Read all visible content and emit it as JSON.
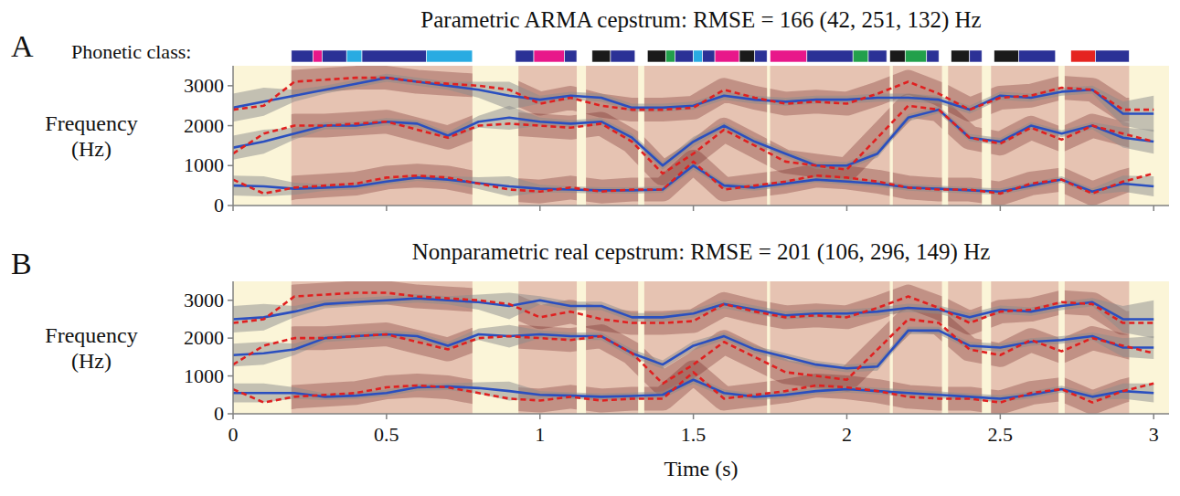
{
  "chart_data": [
    {
      "type": "line",
      "panel": "A",
      "title": "Parametric ARMA cepstrum: RMSE = 166 (42, 251, 132) Hz",
      "y_label": "Frequency (Hz)",
      "tick_labels": "y",
      "xlim": [
        0,
        3.05
      ],
      "xticks": [
        0,
        0.5,
        1,
        1.5,
        2,
        2.5,
        3
      ],
      "ylim": [
        0,
        3500
      ],
      "yticks": [
        0,
        1000,
        2000,
        3000
      ],
      "phonetic_class": {
        "label": "Phonetic class:",
        "segments": [
          {
            "start": 0.19,
            "end": 0.26,
            "color": "#2b3196"
          },
          {
            "start": 0.26,
            "end": 0.29,
            "color": "#e8178a"
          },
          {
            "start": 0.29,
            "end": 0.37,
            "color": "#2b3196"
          },
          {
            "start": 0.37,
            "end": 0.42,
            "color": "#29abe2"
          },
          {
            "start": 0.42,
            "end": 0.63,
            "color": "#2b3196"
          },
          {
            "start": 0.63,
            "end": 0.78,
            "color": "#29abe2"
          },
          {
            "start": 0.92,
            "end": 0.98,
            "color": "#2b3196"
          },
          {
            "start": 0.98,
            "end": 1.08,
            "color": "#e8178a"
          },
          {
            "start": 1.08,
            "end": 1.12,
            "color": "#2b3196"
          },
          {
            "start": 1.17,
            "end": 1.23,
            "color": "#1a1a1a"
          },
          {
            "start": 1.23,
            "end": 1.31,
            "color": "#2b3196"
          },
          {
            "start": 1.35,
            "end": 1.41,
            "color": "#1a1a1a"
          },
          {
            "start": 1.41,
            "end": 1.44,
            "color": "#22a04b"
          },
          {
            "start": 1.44,
            "end": 1.5,
            "color": "#2b3196"
          },
          {
            "start": 1.5,
            "end": 1.53,
            "color": "#29abe2"
          },
          {
            "start": 1.53,
            "end": 1.57,
            "color": "#2b3196"
          },
          {
            "start": 1.57,
            "end": 1.65,
            "color": "#e8178a"
          },
          {
            "start": 1.65,
            "end": 1.7,
            "color": "#1a1a1a"
          },
          {
            "start": 1.7,
            "end": 1.74,
            "color": "#2b3196"
          },
          {
            "start": 1.75,
            "end": 1.87,
            "color": "#e8178a"
          },
          {
            "start": 1.87,
            "end": 2.02,
            "color": "#2b3196"
          },
          {
            "start": 2.02,
            "end": 2.07,
            "color": "#22a04b"
          },
          {
            "start": 2.07,
            "end": 2.13,
            "color": "#2b3196"
          },
          {
            "start": 2.14,
            "end": 2.19,
            "color": "#1a1a1a"
          },
          {
            "start": 2.19,
            "end": 2.26,
            "color": "#22a04b"
          },
          {
            "start": 2.26,
            "end": 2.3,
            "color": "#2b3196"
          },
          {
            "start": 2.34,
            "end": 2.4,
            "color": "#1a1a1a"
          },
          {
            "start": 2.4,
            "end": 2.44,
            "color": "#2b3196"
          },
          {
            "start": 2.48,
            "end": 2.56,
            "color": "#1a1a1a"
          },
          {
            "start": 2.56,
            "end": 2.68,
            "color": "#2b3196"
          },
          {
            "start": 2.73,
            "end": 2.81,
            "color": "#e52420"
          },
          {
            "start": 2.81,
            "end": 2.92,
            "color": "#2b3196"
          }
        ]
      },
      "voiced_segments": [
        [
          0.19,
          0.78
        ],
        [
          0.93,
          1.12
        ],
        [
          1.15,
          1.32
        ],
        [
          1.34,
          1.74
        ],
        [
          1.75,
          2.14
        ],
        [
          2.15,
          2.31
        ],
        [
          2.33,
          2.44
        ],
        [
          2.47,
          2.69
        ],
        [
          2.71,
          2.92
        ]
      ],
      "x": [
        0,
        0.1,
        0.2,
        0.3,
        0.4,
        0.5,
        0.6,
        0.7,
        0.8,
        0.9,
        1,
        1.1,
        1.2,
        1.3,
        1.4,
        1.5,
        1.6,
        1.7,
        1.8,
        1.9,
        2,
        2.1,
        2.2,
        2.3,
        2.4,
        2.5,
        2.6,
        2.7,
        2.8,
        2.9,
        3
      ],
      "series": [
        {
          "color": "#2a4fbf",
          "line_style": "solid",
          "values": [
            500,
            480,
            420,
            450,
            480,
            600,
            700,
            650,
            560,
            480,
            420,
            400,
            380,
            380,
            400,
            1000,
            500,
            450,
            550,
            650,
            600,
            550,
            450,
            420,
            380,
            350,
            500,
            650,
            350,
            550,
            480
          ],
          "uncertainty": [
            250,
            250,
            150,
            80,
            80,
            80,
            80,
            80,
            150,
            250,
            100,
            80,
            80,
            80,
            80,
            100,
            80,
            80,
            80,
            80,
            80,
            80,
            80,
            80,
            80,
            80,
            80,
            80,
            80,
            200,
            250
          ]
        },
        {
          "color": "#2a4fbf",
          "line_style": "solid",
          "values": [
            1450,
            1600,
            1800,
            2000,
            2000,
            2100,
            2050,
            1750,
            2100,
            2200,
            2100,
            2050,
            2100,
            1700,
            1000,
            1600,
            2000,
            1600,
            1300,
            1000,
            1000,
            1300,
            2200,
            2400,
            1700,
            1600,
            2000,
            1800,
            2000,
            1700,
            1600
          ],
          "uncertainty": [
            300,
            300,
            150,
            90,
            90,
            90,
            90,
            90,
            150,
            300,
            100,
            90,
            90,
            100,
            100,
            120,
            90,
            90,
            90,
            90,
            90,
            100,
            90,
            90,
            90,
            90,
            90,
            90,
            90,
            250,
            300
          ]
        },
        {
          "color": "#2a4fbf",
          "line_style": "solid",
          "values": [
            2450,
            2600,
            2750,
            2900,
            3050,
            3200,
            3100,
            3000,
            2900,
            2750,
            2650,
            2750,
            2700,
            2450,
            2450,
            2500,
            2750,
            2650,
            2600,
            2650,
            2650,
            2700,
            2700,
            2650,
            2400,
            2750,
            2700,
            2850,
            2900,
            2300,
            2300
          ],
          "uncertainty": [
            350,
            350,
            150,
            100,
            100,
            100,
            100,
            100,
            200,
            350,
            100,
            100,
            100,
            100,
            100,
            100,
            100,
            100,
            100,
            100,
            100,
            100,
            100,
            100,
            100,
            100,
            100,
            100,
            100,
            300,
            450
          ]
        },
        {
          "color": "#e02020",
          "line_style": "dashed",
          "values": [
            650,
            300,
            450,
            500,
            550,
            700,
            750,
            700,
            550,
            400,
            350,
            450,
            350,
            400,
            400,
            1100,
            400,
            500,
            600,
            750,
            700,
            600,
            450,
            400,
            400,
            300,
            550,
            650,
            300,
            600,
            800
          ]
        },
        {
          "color": "#e02020",
          "line_style": "dashed",
          "values": [
            1300,
            1800,
            2000,
            2000,
            2050,
            2100,
            1900,
            1700,
            2000,
            2050,
            2000,
            1950,
            2050,
            1600,
            800,
            1300,
            1900,
            1500,
            1100,
            1000,
            900,
            1700,
            2500,
            2400,
            1700,
            1550,
            1950,
            1650,
            2000,
            1800,
            1600
          ]
        },
        {
          "color": "#e02020",
          "line_style": "dashed",
          "values": [
            2400,
            2500,
            3100,
            3150,
            3200,
            3200,
            3100,
            3050,
            3000,
            2900,
            2550,
            2700,
            2500,
            2400,
            2400,
            2450,
            2900,
            2700,
            2550,
            2600,
            2550,
            2800,
            3100,
            2800,
            2400,
            2700,
            2750,
            2950,
            2900,
            2400,
            2400
          ]
        }
      ]
    },
    {
      "type": "line",
      "panel": "B",
      "title": "Nonparametric real cepstrum: RMSE = 201 (106, 296, 149) Hz",
      "y_label": "Frequency (Hz)",
      "x_label": "Time (s)",
      "xlim": [
        0,
        3.05
      ],
      "xticks": [
        0,
        0.5,
        1,
        1.5,
        2,
        2.5,
        3
      ],
      "ylim": [
        0,
        3500
      ],
      "yticks": [
        0,
        1000,
        2000,
        3000
      ],
      "voiced_segments": [
        [
          0.19,
          0.78
        ],
        [
          0.93,
          1.12
        ],
        [
          1.15,
          1.32
        ],
        [
          1.34,
          1.74
        ],
        [
          1.75,
          2.14
        ],
        [
          2.15,
          2.31
        ],
        [
          2.33,
          2.44
        ],
        [
          2.47,
          2.69
        ],
        [
          2.71,
          2.92
        ]
      ],
      "x": [
        0,
        0.1,
        0.2,
        0.3,
        0.4,
        0.5,
        0.6,
        0.7,
        0.8,
        0.9,
        1,
        1.1,
        1.2,
        1.3,
        1.4,
        1.5,
        1.6,
        1.7,
        1.8,
        1.9,
        2,
        2.1,
        2.2,
        2.3,
        2.4,
        2.5,
        2.6,
        2.7,
        2.8,
        2.9,
        3
      ],
      "series": [
        {
          "color": "#2a4fbf",
          "line_style": "solid",
          "values": [
            550,
            550,
            550,
            450,
            480,
            550,
            700,
            720,
            680,
            600,
            500,
            480,
            450,
            470,
            500,
            900,
            550,
            450,
            500,
            600,
            650,
            600,
            550,
            500,
            450,
            400,
            500,
            650,
            450,
            600,
            550
          ],
          "uncertainty": [
            250,
            250,
            150,
            90,
            90,
            90,
            90,
            90,
            150,
            250,
            100,
            90,
            90,
            90,
            90,
            110,
            90,
            90,
            90,
            90,
            90,
            90,
            90,
            90,
            90,
            90,
            90,
            90,
            90,
            200,
            250
          ]
        },
        {
          "color": "#2a4fbf",
          "line_style": "solid",
          "values": [
            1550,
            1600,
            1700,
            2000,
            2050,
            2100,
            2050,
            1800,
            2100,
            2050,
            2100,
            2050,
            2050,
            1600,
            1300,
            1800,
            2050,
            1700,
            1500,
            1300,
            1200,
            1250,
            2200,
            2200,
            1800,
            1750,
            1900,
            1950,
            2050,
            1750,
            1750
          ],
          "uncertainty": [
            300,
            300,
            150,
            100,
            100,
            100,
            100,
            100,
            150,
            300,
            100,
            100,
            100,
            110,
            110,
            120,
            100,
            100,
            100,
            100,
            100,
            110,
            100,
            100,
            100,
            100,
            100,
            100,
            100,
            250,
            300
          ]
        },
        {
          "color": "#2a4fbf",
          "line_style": "solid",
          "values": [
            2500,
            2550,
            2700,
            2900,
            2950,
            3000,
            3050,
            3000,
            2950,
            2850,
            3000,
            2850,
            2850,
            2550,
            2550,
            2650,
            2900,
            2750,
            2600,
            2650,
            2650,
            2700,
            2800,
            2750,
            2550,
            2750,
            2700,
            2850,
            2950,
            2500,
            2500
          ],
          "uncertainty": [
            350,
            350,
            150,
            110,
            110,
            110,
            110,
            110,
            200,
            350,
            110,
            110,
            110,
            110,
            110,
            110,
            110,
            110,
            110,
            110,
            110,
            110,
            110,
            110,
            110,
            110,
            110,
            110,
            110,
            350,
            500
          ]
        },
        {
          "color": "#e02020",
          "line_style": "dashed",
          "values": [
            650,
            300,
            450,
            500,
            550,
            700,
            750,
            700,
            550,
            400,
            350,
            450,
            350,
            400,
            400,
            1100,
            400,
            500,
            600,
            750,
            700,
            600,
            450,
            400,
            400,
            300,
            550,
            650,
            300,
            600,
            800
          ]
        },
        {
          "color": "#e02020",
          "line_style": "dashed",
          "values": [
            1300,
            1800,
            2000,
            2000,
            2050,
            2100,
            1900,
            1700,
            2000,
            2050,
            2000,
            1950,
            2050,
            1600,
            800,
            1300,
            1900,
            1500,
            1100,
            1000,
            900,
            1700,
            2500,
            2400,
            1700,
            1550,
            1950,
            1650,
            2000,
            1800,
            1600
          ]
        },
        {
          "color": "#e02020",
          "line_style": "dashed",
          "values": [
            2400,
            2500,
            3100,
            3150,
            3200,
            3200,
            3100,
            3050,
            3000,
            2900,
            2550,
            2700,
            2500,
            2400,
            2400,
            2450,
            2900,
            2700,
            2550,
            2600,
            2550,
            2800,
            3100,
            2800,
            2400,
            2700,
            2750,
            2950,
            2900,
            2400,
            2400
          ]
        }
      ]
    }
  ]
}
